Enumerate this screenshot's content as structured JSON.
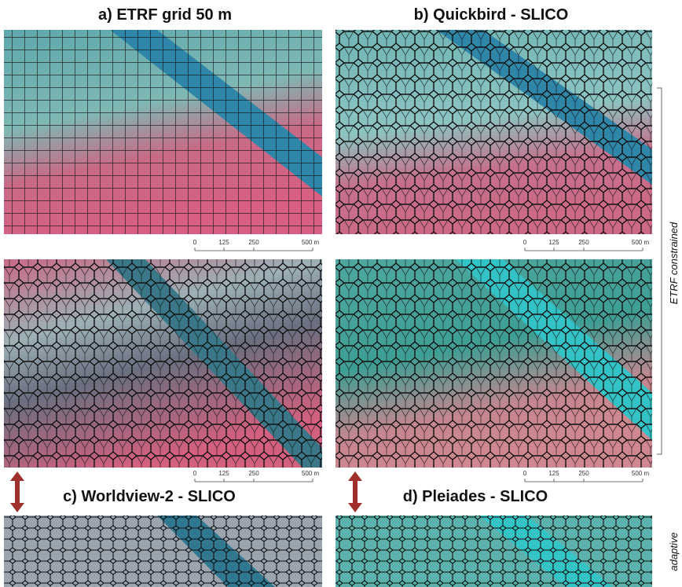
{
  "panels": [
    {
      "title": "a) ETRF grid 50 m"
    },
    {
      "title": "b) Quickbird - SLICO"
    },
    {
      "title": "c) Worldview-2 - SLICO"
    },
    {
      "title": "d) Pleiades - SLICO"
    }
  ],
  "scale_bars": [
    {
      "labels": [
        "0",
        "125",
        "250",
        "500 m"
      ]
    },
    {
      "labels": [
        "0",
        "125",
        "250",
        "500 m"
      ]
    },
    {
      "labels": [
        "0",
        "125",
        "250",
        "500 m"
      ]
    },
    {
      "labels": [
        "0",
        "125",
        "250",
        "500 m"
      ]
    }
  ],
  "side_labels": {
    "constrained": "ETRF constrained",
    "adaptive": "adaptive"
  }
}
